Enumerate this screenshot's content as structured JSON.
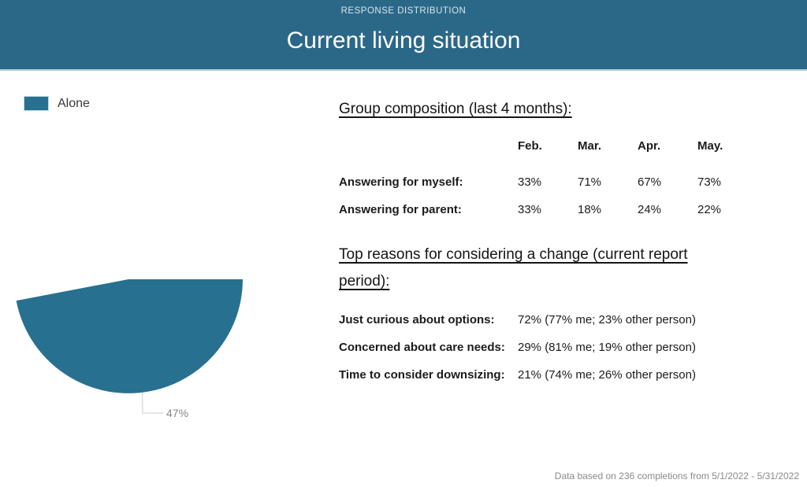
{
  "header": {
    "eyebrow": "RESPONSE DISTRIBUTION",
    "title": "Current living situation"
  },
  "colors": {
    "header_bg": "#2b6888",
    "accent_teal": "#27708f",
    "leader_line": "#cccccc",
    "data_label_gray": "#858585",
    "muted_text": "#8a8a8a"
  },
  "chart_data": [
    {
      "type": "pie",
      "title": "Current living situation",
      "eyebrow": "RESPONSE DISTRIBUTION",
      "legend_position": "top-left",
      "legend_entries": [
        "Alone"
      ],
      "start_angle_deg": 0,
      "slices": [
        {
          "label": "Alone",
          "value_pct": 47,
          "color": "#27708f",
          "data_label": "47%"
        }
      ]
    },
    {
      "type": "table",
      "title": "Group composition (last 4 months):",
      "columns": [
        "Feb.",
        "Mar.",
        "Apr.",
        "May."
      ],
      "rows": [
        {
          "label": "Answering for myself:",
          "values": [
            "33%",
            "71%",
            "67%",
            "73%"
          ]
        },
        {
          "label": "Answering for parent:",
          "values": [
            "33%",
            "18%",
            "24%",
            "22%"
          ]
        }
      ]
    },
    {
      "type": "table",
      "title": "Top reasons for considering a change (current report period):",
      "rows": [
        {
          "label": "Just curious about options:",
          "value": "72% (77% me; 23% other person)"
        },
        {
          "label": "Concerned about care needs:",
          "value": "29% (81% me; 19% other person)"
        },
        {
          "label": "Time to consider downsizing:",
          "value": "21% (74% me; 26% other person)"
        }
      ]
    }
  ],
  "footer": {
    "note": "Data based on 236 completions from 5/1/2022 - 5/31/2022"
  }
}
